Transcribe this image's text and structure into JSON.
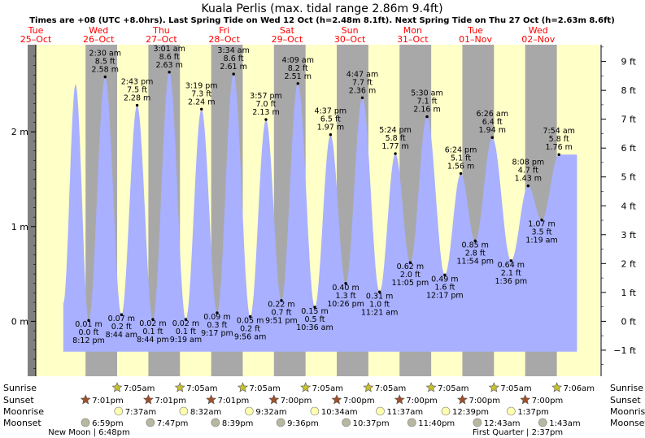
{
  "chart_data": {
    "type": "area",
    "title": "Kuala Perlis (max. tidal range 2.86m 9.4ft)",
    "subtitle": "Times are +08 (UTC +8.0hrs). Last Spring Tide on Wed 12 Oct (h=2.48m 8.1ft). Next Spring Tide on Thu 27 Oct (h=2.63m 8.6ft)",
    "days": [
      {
        "weekday": "Tue",
        "date": "25–Oct"
      },
      {
        "weekday": "Wed",
        "date": "26–Oct"
      },
      {
        "weekday": "Thu",
        "date": "27–Oct"
      },
      {
        "weekday": "Fri",
        "date": "28–Oct"
      },
      {
        "weekday": "Sat",
        "date": "29–Oct"
      },
      {
        "weekday": "Sun",
        "date": "30–Oct"
      },
      {
        "weekday": "Mon",
        "date": "31–Oct"
      },
      {
        "weekday": "Tue",
        "date": "01–Nov"
      },
      {
        "weekday": "Wed",
        "date": "02–Nov"
      }
    ],
    "x_range_hours": [
      0,
      216
    ],
    "y_range_m": [
      -0.58,
      2.92
    ],
    "y_ticks_m": [
      {
        "v": 0,
        "label": "0 m"
      },
      {
        "v": 1,
        "label": "1 m"
      },
      {
        "v": 2,
        "label": "2 m"
      }
    ],
    "y_ticks_ft": [
      "−1 ft",
      "0 ft",
      "1 ft",
      "2 ft",
      "3 ft",
      "4 ft",
      "5 ft",
      "6 ft",
      "7 ft",
      "8 ft",
      "9 ft"
    ],
    "series_start": {
      "t": 10.5,
      "h": 0.19
    },
    "series_end": {
      "t": 206.8,
      "h": 1.76
    },
    "leading_peak": {
      "t": 15.2,
      "h": 2.5
    },
    "extremes": [
      {
        "t": 20.2,
        "type": "low",
        "time": "8:12 pm",
        "m": "0.01 m",
        "ft": "0.0 ft"
      },
      {
        "t": 26.5,
        "type": "high",
        "time": "2:30 am",
        "m": "2.58 m",
        "ft": "8.5 ft"
      },
      {
        "t": 32.73,
        "type": "low",
        "time": "8:44 am",
        "m": "0.07 m",
        "ft": "0.2 ft"
      },
      {
        "t": 38.72,
        "type": "high",
        "time": "2:43 pm",
        "m": "2.28 m",
        "ft": "7.5 ft"
      },
      {
        "t": 44.73,
        "type": "low",
        "time": "8:44 pm",
        "m": "0.02 m",
        "ft": "0.1 ft"
      },
      {
        "t": 51.02,
        "type": "high",
        "time": "3:01 am",
        "m": "2.63 m",
        "ft": "8.6 ft"
      },
      {
        "t": 57.32,
        "type": "low",
        "time": "9:19 am",
        "m": "0.02 m",
        "ft": "0.1 ft"
      },
      {
        "t": 63.32,
        "type": "high",
        "time": "3:19 pm",
        "m": "2.24 m",
        "ft": "7.3 ft"
      },
      {
        "t": 69.28,
        "type": "low",
        "time": "9:17 pm",
        "m": "0.09 m",
        "ft": "0.3 ft"
      },
      {
        "t": 75.57,
        "type": "high",
        "time": "3:34 am",
        "m": "2.61 m",
        "ft": "8.6 ft"
      },
      {
        "t": 81.93,
        "type": "low",
        "time": "9:56 am",
        "m": "0.05 m",
        "ft": "0.2 ft"
      },
      {
        "t": 87.95,
        "type": "high",
        "time": "3:57 pm",
        "m": "2.13 m",
        "ft": "7.0 ft"
      },
      {
        "t": 93.85,
        "type": "low",
        "time": "9:51 pm",
        "m": "0.22 m",
        "ft": "0.7 ft"
      },
      {
        "t": 100.15,
        "type": "high",
        "time": "4:09 am",
        "m": "2.51 m",
        "ft": "8.2 ft"
      },
      {
        "t": 106.6,
        "type": "low",
        "time": "10:36 am",
        "m": "0.15 m",
        "ft": "0.5 ft"
      },
      {
        "t": 112.62,
        "type": "high",
        "time": "4:37 pm",
        "m": "1.97 m",
        "ft": "6.5 ft"
      },
      {
        "t": 118.43,
        "type": "low",
        "time": "10:26 pm",
        "m": "0.40 m",
        "ft": "1.3 ft"
      },
      {
        "t": 124.78,
        "type": "high",
        "time": "4:47 am",
        "m": "2.36 m",
        "ft": "7.7 ft"
      },
      {
        "t": 131.35,
        "type": "low",
        "time": "11:21 am",
        "m": "0.31 m",
        "ft": "1.0 ft"
      },
      {
        "t": 137.4,
        "type": "high",
        "time": "5:24 pm",
        "m": "1.77 m",
        "ft": "5.8 ft"
      },
      {
        "t": 143.08,
        "type": "low",
        "time": "11:05 pm",
        "m": "0.62 m",
        "ft": "2.0 ft"
      },
      {
        "t": 149.5,
        "type": "high",
        "time": "5:30 am",
        "m": "2.16 m",
        "ft": "7.1 ft"
      },
      {
        "t": 156.28,
        "type": "low",
        "time": "12:17 pm",
        "m": "0.49 m",
        "ft": "1.6 ft"
      },
      {
        "t": 162.4,
        "type": "high",
        "time": "6:24 pm",
        "m": "1.56 m",
        "ft": "5.1 ft"
      },
      {
        "t": 167.9,
        "type": "low",
        "time": "11:54 pm",
        "m": "0.85 m",
        "ft": "2.8 ft"
      },
      {
        "t": 174.43,
        "type": "high",
        "time": "6:26 am",
        "m": "1.94 m",
        "ft": "6.4 ft"
      },
      {
        "t": 181.6,
        "type": "low",
        "time": "1:36 pm",
        "m": "0.64 m",
        "ft": "2.1 ft"
      },
      {
        "t": 188.13,
        "type": "high",
        "time": "8:08 pm",
        "m": "1.43 m",
        "ft": "4.7 ft"
      },
      {
        "t": 193.32,
        "type": "low",
        "time": "1:19 am",
        "m": "1.07 m",
        "ft": "3.5 ft"
      },
      {
        "t": 199.9,
        "type": "high",
        "time": "7:54 am",
        "m": "1.76 m",
        "ft": "5.8 ft"
      }
    ],
    "night_bands": [
      {
        "dusk": 19.02,
        "dawn": 31.08
      },
      {
        "dusk": 43.02,
        "dawn": 55.08
      },
      {
        "dusk": 67.02,
        "dawn": 79.08
      },
      {
        "dusk": 91.0,
        "dawn": 103.08
      },
      {
        "dusk": 115.0,
        "dawn": 127.08
      },
      {
        "dusk": 139.0,
        "dawn": 151.08
      },
      {
        "dusk": 163.0,
        "dawn": 175.08
      },
      {
        "dusk": 187.0,
        "dawn": 199.1
      }
    ],
    "astro_rows": [
      {
        "key": "sunrise",
        "label": "Sunrise",
        "events": [
          {
            "t": 31.08,
            "text": "7:05am"
          },
          {
            "t": 55.08,
            "text": "7:05am"
          },
          {
            "t": 79.08,
            "text": "7:05am"
          },
          {
            "t": 103.08,
            "text": "7:05am"
          },
          {
            "t": 127.08,
            "text": "7:05am"
          },
          {
            "t": 151.08,
            "text": "7:05am"
          },
          {
            "t": 175.08,
            "text": "7:05am"
          },
          {
            "t": 199.1,
            "text": "7:06am"
          }
        ]
      },
      {
        "key": "sunset",
        "label": "Sunset",
        "events": [
          {
            "t": 19.02,
            "text": "7:01pm"
          },
          {
            "t": 43.02,
            "text": "7:01pm"
          },
          {
            "t": 67.02,
            "text": "7:01pm"
          },
          {
            "t": 91.0,
            "text": "7:00pm"
          },
          {
            "t": 115.0,
            "text": "7:00pm"
          },
          {
            "t": 139.0,
            "text": "7:00pm"
          },
          {
            "t": 163.0,
            "text": "7:00pm"
          },
          {
            "t": 187.0,
            "text": "7:00pm"
          }
        ]
      },
      {
        "key": "moonrise",
        "label": "Moonrise",
        "events": [
          {
            "t": 31.62,
            "text": "7:37am"
          },
          {
            "t": 56.53,
            "text": "8:32am"
          },
          {
            "t": 81.53,
            "text": "9:32am"
          },
          {
            "t": 106.57,
            "text": "10:34am"
          },
          {
            "t": 131.62,
            "text": "11:37am"
          },
          {
            "t": 156.65,
            "text": "12:39pm"
          },
          {
            "t": 181.62,
            "text": "1:37pm"
          }
        ]
      },
      {
        "key": "moonset",
        "label": "Moonset",
        "events": [
          {
            "t": 18.98,
            "text": "6:59pm"
          },
          {
            "t": 43.78,
            "text": "7:47pm"
          },
          {
            "t": 68.65,
            "text": "8:39pm"
          },
          {
            "t": 93.6,
            "text": "9:36pm"
          },
          {
            "t": 118.62,
            "text": "10:37pm"
          },
          {
            "t": 143.67,
            "text": "11:40pm"
          },
          {
            "t": 168.72,
            "text": "12:43am"
          },
          {
            "t": 193.72,
            "text": "1:43am"
          }
        ]
      }
    ],
    "moon_phases": [
      {
        "t": 18.8,
        "text": "New Moon | 6:48pm"
      },
      {
        "t": 182.62,
        "text": "First Quarter | 2:37pm"
      }
    ],
    "colors": {
      "day": "#ffffc8",
      "night": "#a8a8a8",
      "water": "#a8b0ff",
      "margin_band": "#808080",
      "date_text": "#ff0000",
      "sunrise_star": "#c8c030",
      "sunset_star": "#a05028",
      "moonrise_disc": "#ffffb0",
      "moonset_disc": "#b8b8a0"
    }
  }
}
